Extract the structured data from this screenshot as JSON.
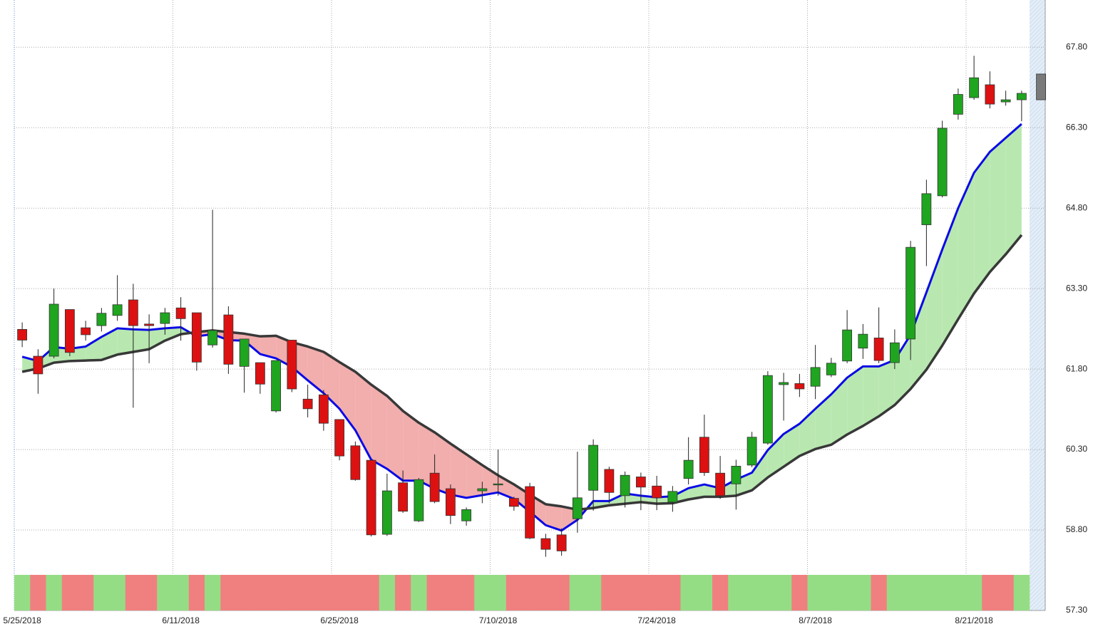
{
  "chart_data": {
    "type": "candlestick",
    "categories": [
      "5/25/2018",
      null,
      null,
      null,
      null,
      null,
      null,
      null,
      null,
      null,
      "6/11/2018",
      null,
      null,
      null,
      null,
      null,
      null,
      null,
      null,
      null,
      "6/25/2018",
      null,
      null,
      null,
      null,
      null,
      null,
      null,
      null,
      null,
      "7/10/2018",
      null,
      null,
      null,
      null,
      null,
      null,
      null,
      null,
      null,
      "7/24/2018",
      null,
      null,
      null,
      null,
      null,
      null,
      null,
      null,
      null,
      "8/7/2018",
      null,
      null,
      null,
      null,
      null,
      null,
      null,
      null,
      null,
      "8/21/2018",
      null,
      null,
      null,
      null
    ],
    "open": [
      62.54,
      62.04,
      62.04,
      62.91,
      62.57,
      62.61,
      62.8,
      63.09,
      62.64,
      62.65,
      62.94,
      62.85,
      62.25,
      62.81,
      61.85,
      61.92,
      61.02,
      62.34,
      61.24,
      61.32,
      60.86,
      60.37,
      60.1,
      58.72,
      59.68,
      58.97,
      59.86,
      59.57,
      58.97,
      59.53,
      59.65,
      59.39,
      59.61,
      58.64,
      58.71,
      59.01,
      59.54,
      59.93,
      59.44,
      59.79,
      59.62,
      59.32,
      59.76,
      60.53,
      59.86,
      59.66,
      60.01,
      60.42,
      61.51,
      61.53,
      61.48,
      61.69,
      61.95,
      62.19,
      62.38,
      61.92,
      62.36,
      64.49,
      65.03,
      66.55,
      66.86,
      67.1,
      66.78,
      66.82,
      66.82
    ],
    "high": [
      62.67,
      62.17,
      63.3,
      62.91,
      62.7,
      62.94,
      63.55,
      63.39,
      62.82,
      62.94,
      63.14,
      62.85,
      64.77,
      62.97,
      62.36,
      61.92,
      61.96,
      62.34,
      61.51,
      61.41,
      60.86,
      60.45,
      60.1,
      59.85,
      59.91,
      59.77,
      60.21,
      59.65,
      59.22,
      59.7,
      60.3,
      59.42,
      59.68,
      58.73,
      58.83,
      60.26,
      60.49,
      59.98,
      59.89,
      59.87,
      59.81,
      59.62,
      60.53,
      60.95,
      60.18,
      60.11,
      60.63,
      61.76,
      61.73,
      61.71,
      62.25,
      62.01,
      62.9,
      62.64,
      62.95,
      62.54,
      64.19,
      65.33,
      66.43,
      67.03,
      67.64,
      67.35,
      66.99,
      66.99,
      null
    ],
    "low": [
      62.21,
      61.34,
      62.0,
      62.04,
      62.33,
      62.5,
      62.7,
      61.08,
      61.91,
      62.44,
      62.33,
      61.77,
      62.2,
      61.71,
      61.36,
      61.34,
      60.99,
      61.37,
      60.9,
      60.65,
      60.1,
      59.72,
      58.68,
      58.69,
      59.12,
      58.95,
      59.3,
      58.91,
      58.88,
      59.3,
      59.44,
      59.16,
      58.63,
      58.3,
      58.32,
      58.75,
      59.16,
      59.3,
      59.22,
      59.17,
      59.17,
      59.14,
      59.65,
      59.81,
      59.38,
      59.18,
      59.97,
      60.39,
      60.84,
      61.28,
      61.24,
      61.65,
      61.91,
      61.99,
      61.91,
      61.8,
      61.97,
      63.72,
      65.0,
      66.45,
      66.82,
      66.66,
      66.71,
      66.42,
      null
    ],
    "close": [
      62.34,
      61.71,
      63.01,
      62.11,
      62.44,
      62.84,
      63.0,
      62.61,
      62.61,
      62.85,
      62.74,
      61.93,
      62.52,
      61.89,
      62.36,
      61.52,
      61.96,
      61.43,
      61.06,
      60.79,
      60.18,
      59.74,
      58.71,
      59.53,
      59.15,
      59.74,
      59.33,
      59.07,
      59.18,
      59.57,
      59.66,
      59.24,
      58.65,
      58.44,
      58.41,
      59.4,
      60.38,
      59.5,
      59.82,
      59.6,
      59.4,
      59.52,
      60.1,
      59.87,
      59.44,
      59.99,
      60.53,
      61.68,
      61.55,
      61.43,
      61.83,
      61.91,
      62.53,
      62.45,
      61.96,
      62.29,
      64.07,
      65.07,
      66.29,
      66.92,
      67.23,
      66.74,
      66.82,
      66.94,
      67.3
    ],
    "up_color": "#1fa51f",
    "down_color": "#dd1111",
    "pending_color": "#7a7a7a",
    "lines": [
      {
        "color": "#0a0ae6",
        "values": [
          62.03,
          61.95,
          62.21,
          62.18,
          62.22,
          62.4,
          62.56,
          62.54,
          62.53,
          62.56,
          62.58,
          62.41,
          62.45,
          62.34,
          62.33,
          62.08,
          62.0,
          61.84,
          61.59,
          61.35,
          61.06,
          60.66,
          60.11,
          59.94,
          59.72,
          59.72,
          59.57,
          59.46,
          59.4,
          59.45,
          59.5,
          59.38,
          59.14,
          58.89,
          58.79,
          58.99,
          59.34,
          59.34,
          59.48,
          59.44,
          59.41,
          59.43,
          59.58,
          59.65,
          59.58,
          59.74,
          59.87,
          60.29,
          60.59,
          60.78,
          61.06,
          61.33,
          61.64,
          61.85,
          61.85,
          61.97,
          62.44,
          63.23,
          64.03,
          64.8,
          65.46,
          65.85,
          66.11,
          66.37,
          null
        ]
      },
      {
        "color": "#383838",
        "values": [
          61.75,
          61.81,
          61.92,
          61.95,
          61.96,
          61.97,
          62.07,
          62.12,
          62.17,
          62.33,
          62.45,
          62.49,
          62.52,
          62.49,
          62.46,
          62.41,
          62.42,
          62.3,
          62.22,
          62.12,
          61.93,
          61.75,
          61.51,
          61.3,
          61.02,
          60.8,
          60.62,
          60.41,
          60.21,
          60.01,
          59.82,
          59.65,
          59.46,
          59.28,
          59.24,
          59.18,
          59.21,
          59.26,
          59.29,
          59.32,
          59.29,
          59.3,
          59.37,
          59.42,
          59.42,
          59.44,
          59.54,
          59.78,
          59.98,
          60.18,
          60.31,
          60.39,
          60.58,
          60.74,
          60.92,
          61.13,
          61.43,
          61.79,
          62.24,
          62.73,
          63.21,
          63.61,
          63.94,
          64.3,
          null
        ]
      }
    ],
    "band_up_color": "#b8e8b0",
    "band_down_color": "#f2adad",
    "signal_colors": [
      "#95dd85",
      "#f08080",
      "#95dd85",
      "#f08080",
      "#f08080",
      "#95dd85",
      "#95dd85",
      "#f08080",
      "#f08080",
      "#95dd85",
      "#95dd85",
      "#f08080",
      "#95dd85",
      "#f08080",
      "#f08080",
      "#f08080",
      "#f08080",
      "#f08080",
      "#f08080",
      "#f08080",
      "#f08080",
      "#f08080",
      "#f08080",
      "#95dd85",
      "#f08080",
      "#95dd85",
      "#f08080",
      "#f08080",
      "#f08080",
      "#95dd85",
      "#95dd85",
      "#f08080",
      "#f08080",
      "#f08080",
      "#f08080",
      "#95dd85",
      "#95dd85",
      "#f08080",
      "#f08080",
      "#f08080",
      "#f08080",
      "#f08080",
      "#95dd85",
      "#95dd85",
      "#f08080",
      "#95dd85",
      "#95dd85",
      "#95dd85",
      "#95dd85",
      "#f08080",
      "#95dd85",
      "#95dd85",
      "#95dd85",
      "#95dd85",
      "#f08080",
      "#95dd85",
      "#95dd85",
      "#95dd85",
      "#95dd85",
      "#95dd85",
      "#95dd85",
      "#f08080",
      "#f08080",
      "#95dd85"
    ],
    "ylim": [
      57.3,
      68.68
    ],
    "yticks": [
      {
        "value": 57.3,
        "label": "57.30"
      },
      {
        "value": 58.8,
        "label": "58.80"
      },
      {
        "value": 60.3,
        "label": "60.30"
      },
      {
        "value": 61.8,
        "label": "61.80"
      },
      {
        "value": 63.3,
        "label": "63.30"
      },
      {
        "value": 64.8,
        "label": "64.80"
      },
      {
        "value": 66.3,
        "label": "66.30"
      },
      {
        "value": 67.8,
        "label": "67.80"
      }
    ],
    "grid": true
  }
}
